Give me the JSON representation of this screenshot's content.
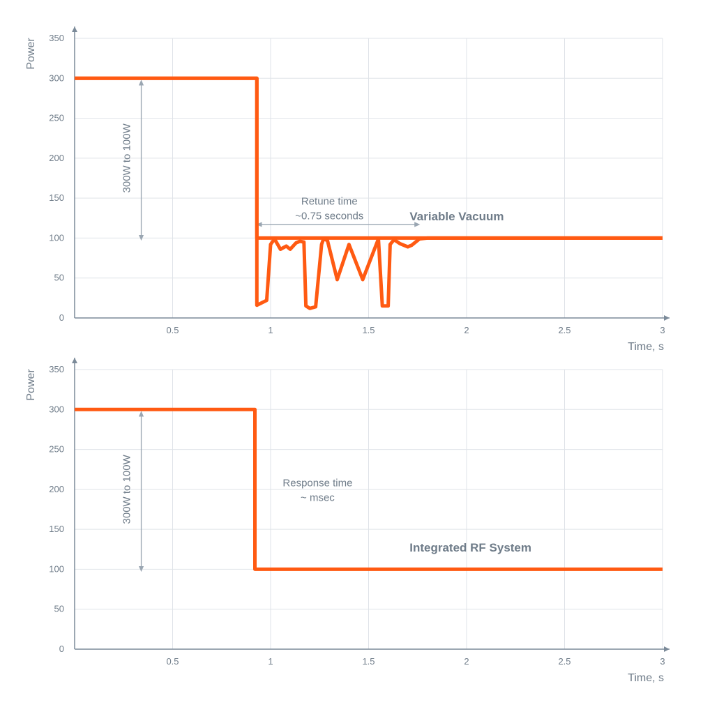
{
  "colors": {
    "series": "#ff5a12",
    "axis": "#7b8a99",
    "grid": "#dfe3e8",
    "text": "#6f7c89",
    "arrow": "#9aa6b2"
  },
  "chart_data": [
    {
      "type": "line",
      "xlabel": "Time, s",
      "ylabel": "Power",
      "xlim": [
        0,
        3
      ],
      "ylim": [
        0,
        350
      ],
      "x_ticks": [
        "0.5",
        "1",
        "1.5",
        "2",
        "2.5",
        "3"
      ],
      "y_ticks": [
        "0",
        "50",
        "100",
        "150",
        "200",
        "250",
        "300",
        "350"
      ],
      "grid": true,
      "series": [
        {
          "name": "Variable Vacuum",
          "x": [
            0,
            0.93,
            0.93,
            0.98,
            1.0,
            1.02,
            1.05,
            1.08,
            1.1,
            1.13,
            1.15,
            1.17,
            1.18,
            1.2,
            1.23,
            1.26,
            1.27,
            1.29,
            1.34,
            1.4,
            1.47,
            1.55,
            1.57,
            1.6,
            1.61,
            1.63,
            1.66,
            1.7,
            1.72,
            1.76,
            1.8,
            3.0
          ],
          "y": [
            300,
            300,
            16,
            22,
            92,
            99,
            86,
            90,
            86,
            94,
            96,
            95,
            15,
            12,
            14,
            92,
            99,
            97,
            48,
            92,
            48,
            99,
            15,
            15,
            92,
            98,
            93,
            89,
            91,
            99,
            100,
            100
          ]
        },
        {
          "name": "",
          "x": [
            0,
            0.93,
            0.93,
            3.0
          ],
          "y": [
            300,
            300,
            100,
            100
          ]
        }
      ],
      "annotations": [
        {
          "text": "Variable Vacuum",
          "kind": "series-label",
          "x": 1.95,
          "y": 122
        },
        {
          "text": [
            "Retune time",
            "~0.75 seconds"
          ],
          "kind": "note",
          "x": 1.3,
          "y": 142
        },
        {
          "text": "300W to 100W",
          "kind": "vertical",
          "x": 0.34,
          "y": 200
        }
      ],
      "ranges": [
        {
          "kind": "vertical",
          "x": 0.34,
          "from": 295,
          "to": 100
        },
        {
          "kind": "horizontal",
          "y": 117,
          "from": 0.94,
          "to": 1.75
        }
      ]
    },
    {
      "type": "line",
      "xlabel": "Time, s",
      "ylabel": "Power",
      "xlim": [
        0,
        3
      ],
      "ylim": [
        0,
        350
      ],
      "x_ticks": [
        "0.5",
        "1",
        "1.5",
        "2",
        "2.5",
        "3"
      ],
      "y_ticks": [
        "0",
        "50",
        "100",
        "150",
        "200",
        "250",
        "300",
        "350"
      ],
      "grid": true,
      "series": [
        {
          "name": "Integrated RF System",
          "x": [
            0,
            0.92,
            0.92,
            3.0
          ],
          "y": [
            300,
            300,
            100,
            100
          ]
        }
      ],
      "annotations": [
        {
          "text": "Integrated RF System",
          "kind": "series-label",
          "x": 2.02,
          "y": 122
        },
        {
          "text": [
            "Response time",
            "~ msec"
          ],
          "kind": "note",
          "x": 1.24,
          "y": 204
        },
        {
          "text": "300W to 100W",
          "kind": "vertical",
          "x": 0.34,
          "y": 200
        }
      ],
      "ranges": [
        {
          "kind": "vertical",
          "x": 0.34,
          "from": 295,
          "to": 100
        }
      ]
    }
  ]
}
